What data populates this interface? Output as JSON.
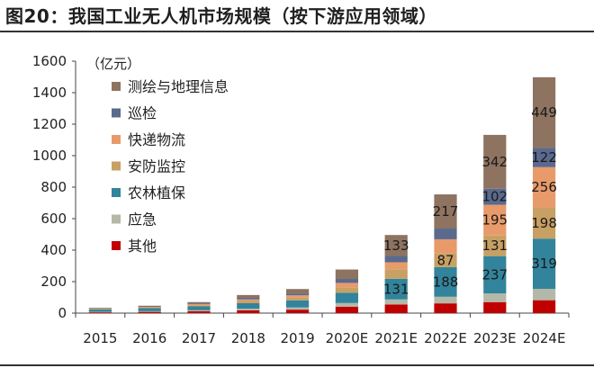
{
  "title": "图20：我国工业无人机市场规模（按下游应用领域）",
  "chart_data": {
    "type": "bar",
    "stacked": true,
    "unit": "（亿元）",
    "categories": [
      "2015",
      "2016",
      "2017",
      "2018",
      "2019",
      "2020E",
      "2021E",
      "2022E",
      "2023E",
      "2024E"
    ],
    "ylim": [
      0,
      1600
    ],
    "yticks": [
      "0",
      "200",
      "400",
      "600",
      "800",
      "1000",
      "1200",
      "1400",
      "1600"
    ],
    "series": [
      {
        "name": "其他",
        "color": "#c00000",
        "values": [
          5,
          8,
          12,
          18,
          22,
          40,
          55,
          62,
          70,
          82
        ]
      },
      {
        "name": "应急",
        "color": "#b4b8a8",
        "values": [
          3,
          4,
          6,
          10,
          14,
          24,
          32,
          42,
          55,
          72
        ]
      },
      {
        "name": "农林植保",
        "color": "#31849b",
        "values": [
          15,
          20,
          25,
          35,
          45,
          65,
          131,
          188,
          237,
          319
        ]
      },
      {
        "name": "安防监控",
        "color": "#c8a063",
        "values": [
          4,
          5,
          8,
          14,
          18,
          35,
          60,
          87,
          131,
          198
        ]
      },
      {
        "name": "快递物流",
        "color": "#e89a6a",
        "values": [
          2,
          3,
          6,
          10,
          14,
          28,
          45,
          90,
          195,
          256
        ]
      },
      {
        "name": "巡检",
        "color": "#5a6a8e",
        "values": [
          2,
          3,
          5,
          10,
          12,
          25,
          40,
          68,
          102,
          122
        ]
      },
      {
        "name": "测绘与地理信息",
        "color": "#8e7360",
        "values": [
          3,
          4,
          8,
          18,
          28,
          60,
          133,
          217,
          342,
          449
        ]
      }
    ],
    "data_labels": [
      {
        "category": "2021E",
        "series": "农林植保",
        "text": "131"
      },
      {
        "category": "2021E",
        "series": "测绘与地理信息",
        "text": "133"
      },
      {
        "category": "2022E",
        "series": "农林植保",
        "text": "188"
      },
      {
        "category": "2022E",
        "series": "安防监控",
        "text": "87"
      },
      {
        "category": "2022E",
        "series": "测绘与地理信息",
        "text": "217"
      },
      {
        "category": "2023E",
        "series": "农林植保",
        "text": "237"
      },
      {
        "category": "2023E",
        "series": "安防监控",
        "text": "131"
      },
      {
        "category": "2023E",
        "series": "快递物流",
        "text": "195"
      },
      {
        "category": "2023E",
        "series": "巡检",
        "text": "102"
      },
      {
        "category": "2023E",
        "series": "测绘与地理信息",
        "text": "342"
      },
      {
        "category": "2024E",
        "series": "农林植保",
        "text": "319"
      },
      {
        "category": "2024E",
        "series": "安防监控",
        "text": "198"
      },
      {
        "category": "2024E",
        "series": "快递物流",
        "text": "256"
      },
      {
        "category": "2024E",
        "series": "巡检",
        "text": "122"
      },
      {
        "category": "2024E",
        "series": "测绘与地理信息",
        "text": "449"
      }
    ],
    "legend_position": "top-left",
    "grid": false
  }
}
